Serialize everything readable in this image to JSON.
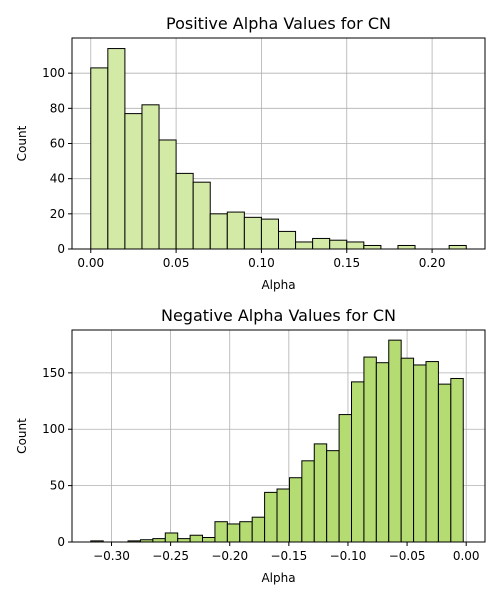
{
  "chart_data": [
    {
      "type": "bar",
      "title": "Positive Alpha Values for CN",
      "xlabel": "Alpha",
      "ylabel": "Count",
      "bar_color": "#d3eaa6",
      "bin_width": 0.01,
      "xlim": [
        -0.011,
        0.231
      ],
      "ylim": [
        0,
        120
      ],
      "xticks": [
        0.0,
        0.05,
        0.1,
        0.15,
        0.2
      ],
      "xtick_labels": [
        "0.00",
        "0.05",
        "0.10",
        "0.15",
        "0.20"
      ],
      "yticks": [
        0,
        20,
        40,
        60,
        80,
        100
      ],
      "ytick_labels": [
        "0",
        "20",
        "40",
        "60",
        "80",
        "100"
      ],
      "grid": true,
      "bins": [
        {
          "x": 0.0,
          "count": 103
        },
        {
          "x": 0.01,
          "count": 114
        },
        {
          "x": 0.02,
          "count": 77
        },
        {
          "x": 0.03,
          "count": 82
        },
        {
          "x": 0.04,
          "count": 62
        },
        {
          "x": 0.05,
          "count": 43
        },
        {
          "x": 0.06,
          "count": 38
        },
        {
          "x": 0.07,
          "count": 20
        },
        {
          "x": 0.08,
          "count": 21
        },
        {
          "x": 0.09,
          "count": 18
        },
        {
          "x": 0.1,
          "count": 17
        },
        {
          "x": 0.11,
          "count": 10
        },
        {
          "x": 0.12,
          "count": 4
        },
        {
          "x": 0.13,
          "count": 6
        },
        {
          "x": 0.14,
          "count": 5
        },
        {
          "x": 0.15,
          "count": 4
        },
        {
          "x": 0.16,
          "count": 2
        },
        {
          "x": 0.17,
          "count": 0
        },
        {
          "x": 0.18,
          "count": 2
        },
        {
          "x": 0.19,
          "count": 0
        },
        {
          "x": 0.2,
          "count": 0
        },
        {
          "x": 0.21,
          "count": 2
        }
      ]
    },
    {
      "type": "bar",
      "title": "Negative Alpha Values for CN",
      "xlabel": "Alpha",
      "ylabel": "Count",
      "bar_color": "#b5dc72",
      "bin_width": 0.0105,
      "xlim": [
        -0.3334,
        0.0159
      ],
      "ylim": [
        0,
        188
      ],
      "xticks": [
        -0.3,
        -0.25,
        -0.2,
        -0.15,
        -0.1,
        -0.05,
        0.0
      ],
      "xtick_labels": [
        "−0.30",
        "−0.25",
        "−0.20",
        "−0.15",
        "−0.10",
        "−0.05",
        "0.00"
      ],
      "yticks": [
        0,
        50,
        100,
        150
      ],
      "ytick_labels": [
        "0",
        "50",
        "100",
        "150"
      ],
      "grid": true,
      "bins": [
        {
          "x": -0.3175,
          "count": 1
        },
        {
          "x": -0.307,
          "count": 0
        },
        {
          "x": -0.2965,
          "count": 0
        },
        {
          "x": -0.286,
          "count": 1
        },
        {
          "x": -0.2755,
          "count": 2
        },
        {
          "x": -0.265,
          "count": 3
        },
        {
          "x": -0.2545,
          "count": 8
        },
        {
          "x": -0.244,
          "count": 3
        },
        {
          "x": -0.2335,
          "count": 6
        },
        {
          "x": -0.223,
          "count": 4
        },
        {
          "x": -0.2125,
          "count": 18
        },
        {
          "x": -0.202,
          "count": 16
        },
        {
          "x": -0.1915,
          "count": 18
        },
        {
          "x": -0.181,
          "count": 22
        },
        {
          "x": -0.1705,
          "count": 44
        },
        {
          "x": -0.16,
          "count": 47
        },
        {
          "x": -0.1495,
          "count": 57
        },
        {
          "x": -0.139,
          "count": 72
        },
        {
          "x": -0.1285,
          "count": 87
        },
        {
          "x": -0.118,
          "count": 81
        },
        {
          "x": -0.1075,
          "count": 113
        },
        {
          "x": -0.097,
          "count": 142
        },
        {
          "x": -0.0865,
          "count": 164
        },
        {
          "x": -0.076,
          "count": 159
        },
        {
          "x": -0.0655,
          "count": 179
        },
        {
          "x": -0.055,
          "count": 163
        },
        {
          "x": -0.0445,
          "count": 157
        },
        {
          "x": -0.034,
          "count": 160
        },
        {
          "x": -0.0235,
          "count": 140
        },
        {
          "x": -0.013,
          "count": 145
        }
      ]
    }
  ]
}
